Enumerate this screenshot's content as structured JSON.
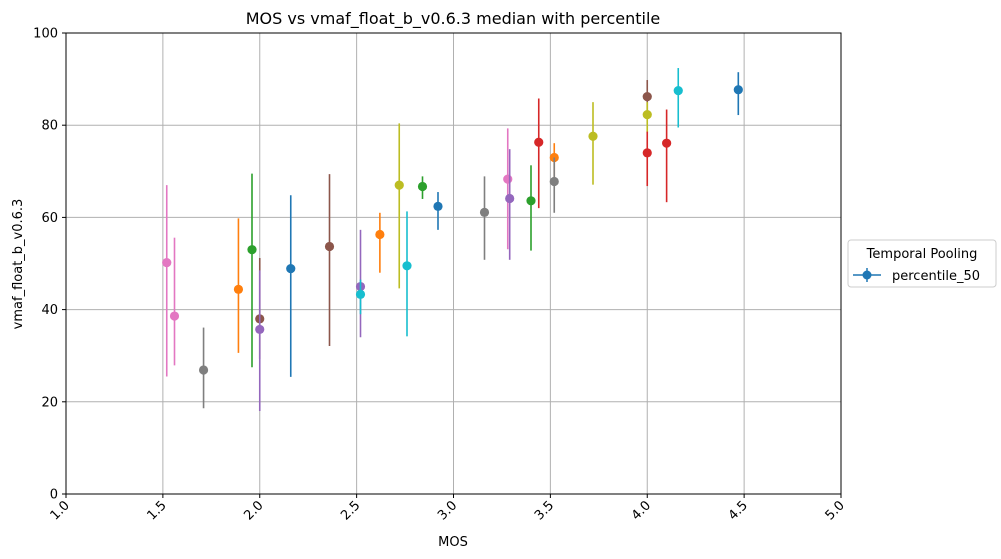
{
  "chart_data": {
    "type": "scatter",
    "title": "MOS vs vmaf_float_b_v0.6.3 median with percentile",
    "xlabel": "MOS",
    "ylabel": "vmaf_float_b_v0.6.3",
    "xlim": [
      1.0,
      5.0
    ],
    "ylim": [
      0,
      100
    ],
    "xticks": [
      "1.0",
      "1.5",
      "2.0",
      "2.5",
      "3.0",
      "3.5",
      "4.0",
      "4.5",
      "5.0"
    ],
    "yticks": [
      "0",
      "20",
      "40",
      "60",
      "80",
      "100"
    ],
    "grid": true,
    "legend": {
      "title": "Temporal Pooling",
      "placement": "outside-right",
      "entries": [
        "percentile_50"
      ]
    },
    "series": [
      {
        "name": "percentile_50",
        "marker": "circle-with-errorbars",
        "points": [
          {
            "x": 1.52,
            "y": 50.2,
            "low": 25.5,
            "high": 67.0,
            "color": "#e377c2"
          },
          {
            "x": 1.56,
            "y": 38.6,
            "low": 27.9,
            "high": 55.6,
            "color": "#e377c2"
          },
          {
            "x": 1.71,
            "y": 26.9,
            "low": 18.6,
            "high": 36.1,
            "color": "#7f7f7f"
          },
          {
            "x": 1.89,
            "y": 44.4,
            "low": 30.6,
            "high": 59.8,
            "color": "#ff7f0e"
          },
          {
            "x": 1.96,
            "y": 53.0,
            "low": 27.5,
            "high": 69.5,
            "color": "#2ca02c"
          },
          {
            "x": 2.0,
            "y": 38.0,
            "low": 29.3,
            "high": 51.2,
            "color": "#8c564b"
          },
          {
            "x": 2.0,
            "y": 35.7,
            "low": 18.0,
            "high": 48.5,
            "color": "#9467bd"
          },
          {
            "x": 2.16,
            "y": 48.9,
            "low": 25.4,
            "high": 64.8,
            "color": "#1f77b4"
          },
          {
            "x": 2.36,
            "y": 53.7,
            "low": 32.1,
            "high": 69.4,
            "color": "#8c564b"
          },
          {
            "x": 2.52,
            "y": 45.0,
            "low": 34.0,
            "high": 57.3,
            "color": "#9467bd"
          },
          {
            "x": 2.52,
            "y": 43.3,
            "low": 39.0,
            "high": 46.5,
            "color": "#17becf"
          },
          {
            "x": 2.62,
            "y": 56.3,
            "low": 48.0,
            "high": 61.0,
            "color": "#ff7f0e"
          },
          {
            "x": 2.72,
            "y": 67.0,
            "low": 44.6,
            "high": 80.4,
            "color": "#bcbd22"
          },
          {
            "x": 2.76,
            "y": 49.5,
            "low": 34.2,
            "high": 61.3,
            "color": "#17becf"
          },
          {
            "x": 2.84,
            "y": 66.7,
            "low": 64.0,
            "high": 68.9,
            "color": "#2ca02c"
          },
          {
            "x": 2.92,
            "y": 62.4,
            "low": 57.3,
            "high": 65.5,
            "color": "#1f77b4"
          },
          {
            "x": 3.16,
            "y": 61.1,
            "low": 50.8,
            "high": 68.9,
            "color": "#7f7f7f"
          },
          {
            "x": 3.28,
            "y": 68.3,
            "low": 53.1,
            "high": 79.3,
            "color": "#e377c2"
          },
          {
            "x": 3.29,
            "y": 64.1,
            "low": 50.8,
            "high": 74.8,
            "color": "#9467bd"
          },
          {
            "x": 3.4,
            "y": 63.6,
            "low": 52.8,
            "high": 71.3,
            "color": "#2ca02c"
          },
          {
            "x": 3.44,
            "y": 76.3,
            "low": 62.0,
            "high": 85.8,
            "color": "#d62728"
          },
          {
            "x": 3.52,
            "y": 73.0,
            "low": 67.5,
            "high": 76.1,
            "color": "#ff7f0e"
          },
          {
            "x": 3.52,
            "y": 67.8,
            "low": 61.0,
            "high": 73.0,
            "color": "#7f7f7f"
          },
          {
            "x": 3.72,
            "y": 77.6,
            "low": 67.1,
            "high": 85.0,
            "color": "#bcbd22"
          },
          {
            "x": 4.0,
            "y": 86.2,
            "low": 82.0,
            "high": 89.8,
            "color": "#8c564b"
          },
          {
            "x": 4.0,
            "y": 82.3,
            "low": 78.4,
            "high": 85.0,
            "color": "#bcbd22"
          },
          {
            "x": 4.0,
            "y": 74.0,
            "low": 66.8,
            "high": 78.6,
            "color": "#d62728"
          },
          {
            "x": 4.1,
            "y": 76.1,
            "low": 63.3,
            "high": 83.4,
            "color": "#d62728"
          },
          {
            "x": 4.16,
            "y": 87.5,
            "low": 79.5,
            "high": 92.4,
            "color": "#17becf"
          },
          {
            "x": 4.47,
            "y": 87.7,
            "low": 82.2,
            "high": 91.5,
            "color": "#1f77b4"
          }
        ]
      }
    ],
    "legend_color": "#1f77b4"
  }
}
